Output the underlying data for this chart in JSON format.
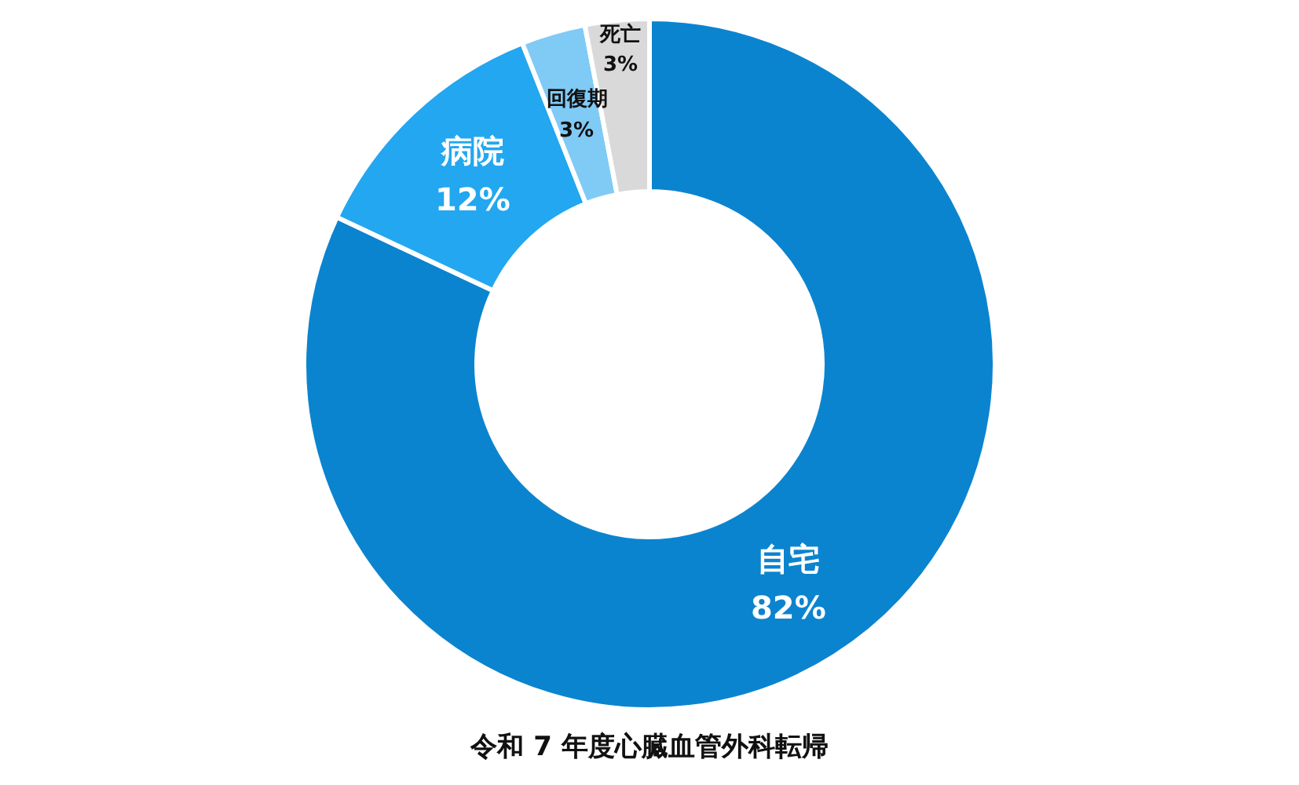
{
  "chart_data": {
    "type": "donut",
    "title": "令和 7 年度心臓血管外科転帰",
    "categories": [
      "自宅",
      "病院",
      "回復期",
      "死亡"
    ],
    "values": [
      82,
      12,
      3,
      3
    ],
    "value_labels": [
      "82%",
      "12%",
      "3%",
      "3%"
    ],
    "colors": [
      "#0b84cf",
      "#22a7f0",
      "#80caf6",
      "#d9d9d9"
    ]
  }
}
